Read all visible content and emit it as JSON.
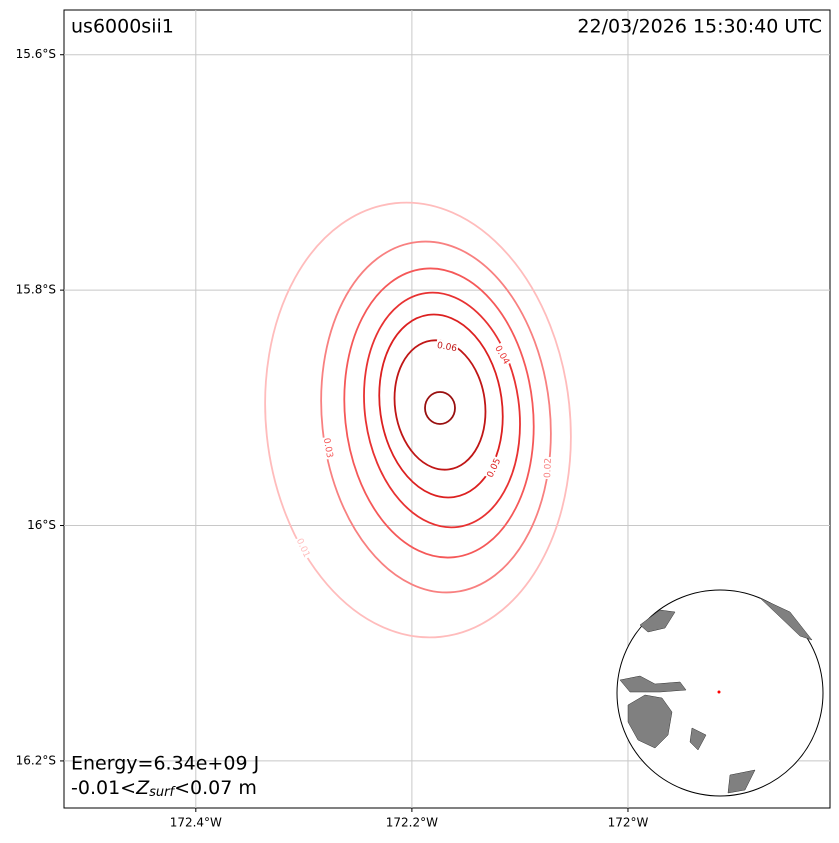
{
  "chart_data": {
    "type": "contour",
    "event_id": "us6000sii1",
    "timestamp": "22/03/2026 15:30:40 UTC",
    "energy": "Energy=6.34e+09 J",
    "range_label": {
      "prefix": "-0.01<",
      "symbol": "Z",
      "subscript": "surf",
      "suffix": "<0.07 m"
    },
    "xlim": [
      -172.522,
      -171.813
    ],
    "ylim": [
      -16.24,
      -15.562
    ],
    "xticks": [
      {
        "value": -172.4,
        "label": "172.4°W"
      },
      {
        "value": -172.2,
        "label": "172.2°W"
      },
      {
        "value": -172.0,
        "label": "172°W"
      }
    ],
    "yticks": [
      {
        "value": -15.6,
        "label": "15.6°S"
      },
      {
        "value": -15.8,
        "label": "15.8°S"
      },
      {
        "value": -16.0,
        "label": "16°S"
      },
      {
        "value": -16.2,
        "label": "16.2°S"
      }
    ],
    "grid": true,
    "contours": [
      {
        "level": 0.01,
        "color": "#ffbcbc"
      },
      {
        "level": 0.02,
        "color": "#f88080"
      },
      {
        "level": 0.03,
        "color": "#f55858"
      },
      {
        "level": 0.04,
        "color": "#e83232"
      },
      {
        "level": 0.05,
        "color": "#dc2020"
      },
      {
        "level": 0.06,
        "color": "#c01616"
      },
      {
        "level": 0.07,
        "color": "#990f0f"
      }
    ]
  }
}
